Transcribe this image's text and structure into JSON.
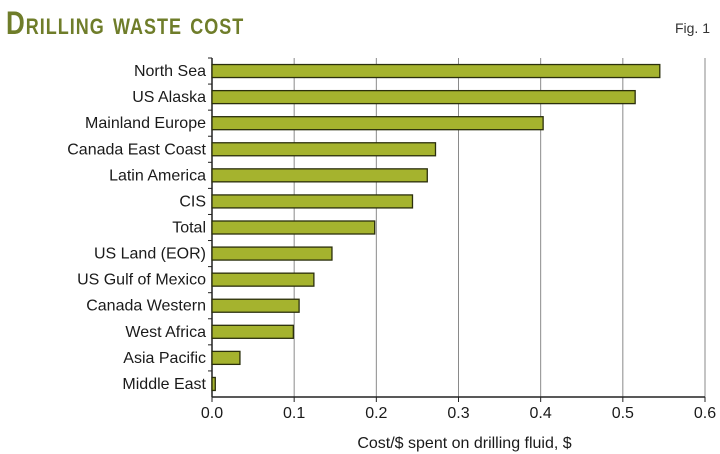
{
  "header": {
    "title": "Drilling waste cost",
    "fig": "Fig. 1"
  },
  "colors": {
    "title": "#6f7d2a",
    "bar_fill": "#a5b32e",
    "bar_stroke": "#2b2f0c",
    "grid": "#8a8a8a",
    "axis": "#222222"
  },
  "chart_data": {
    "type": "bar",
    "orientation": "horizontal",
    "categories": [
      "North Sea",
      "US Alaska",
      "Mainland Europe",
      "Canada East Coast",
      "Latin America",
      "CIS",
      "Total",
      "US Land (EOR)",
      "US Gulf of Mexico",
      "Canada Western",
      "West Africa",
      "Asia Pacific",
      "Middle East"
    ],
    "values": [
      0.545,
      0.515,
      0.403,
      0.272,
      0.262,
      0.244,
      0.198,
      0.146,
      0.124,
      0.106,
      0.099,
      0.034,
      0.004
    ],
    "xlabel": "Cost/$ spent on drilling fluid, $",
    "xlim": [
      0,
      0.6
    ],
    "xticks": [
      "0.0",
      "0.1",
      "0.2",
      "0.3",
      "0.4",
      "0.5",
      "0.6"
    ],
    "grid": "vertical"
  }
}
